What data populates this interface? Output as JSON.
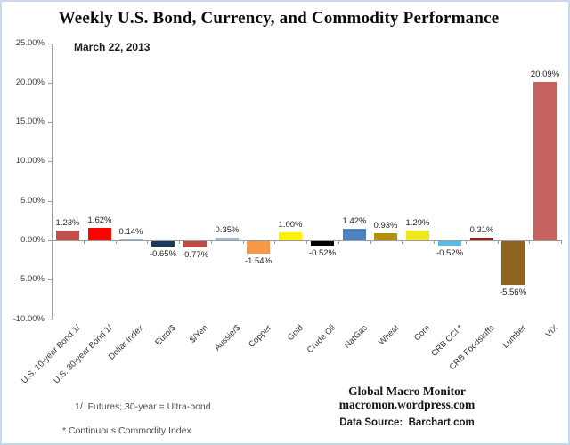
{
  "chart_data": {
    "type": "bar",
    "title": "Weekly U.S. Bond, Currency, and Commodity Performance",
    "date_label": "March 22, 2013",
    "categories": [
      "U.S. 10-year Bond 1/",
      "U.S. 30-year Bond 1/",
      "Dollar Index",
      "Euro/$",
      "$/Yen",
      "Aussie/$",
      "Copper",
      "Gold",
      "Crude Oil",
      "NatGas",
      "Wheat",
      "Corn",
      "CRB CCI *",
      "CRB Foodstuffs",
      "Lumber",
      "VIX"
    ],
    "values": [
      1.23,
      1.62,
      0.14,
      -0.65,
      -0.77,
      0.35,
      -1.54,
      1.0,
      -0.52,
      1.42,
      0.93,
      1.29,
      -0.52,
      0.31,
      -5.56,
      20.09
    ],
    "value_labels": [
      "1.23%",
      "1.62%",
      "0.14%",
      "-0.65%",
      "-0.77%",
      "0.35%",
      "-1.54%",
      "1.00%",
      "-0.52%",
      "1.42%",
      "0.93%",
      "1.29%",
      "-0.52%",
      "0.31%",
      "-5.56%",
      "20.09%"
    ],
    "bar_colors": [
      "#C0504D",
      "#FE0000",
      "#95B3D7",
      "#1B3A5F",
      "#BE4B48",
      "#A3BBD6",
      "#F79646",
      "#FFF200",
      "#000000",
      "#4F81BD",
      "#B38F0E",
      "#EFE71F",
      "#55BEE8",
      "#9A1B1E",
      "#8F6420",
      "#C4635D"
    ],
    "ylim": [
      -10,
      25
    ],
    "yticks": [
      {
        "value": 25,
        "label": "25.00%"
      },
      {
        "value": 20,
        "label": "20.00%"
      },
      {
        "value": 15,
        "label": "15.00%"
      },
      {
        "value": 10,
        "label": "10.00%"
      },
      {
        "value": 5,
        "label": "5.00%"
      },
      {
        "value": 0,
        "label": "0.00%"
      },
      {
        "value": -5,
        "label": "-5.00%"
      },
      {
        "value": -10,
        "label": "-10.00%"
      }
    ],
    "xlabel": "",
    "ylabel": "",
    "grid": false,
    "legend": false
  },
  "footnotes": {
    "line1": "1/  Futures; 30-year = Ultra-bond",
    "line2": "* Continuous Commodity Index"
  },
  "attribution": {
    "line1": "Global Macro Monitor",
    "line2": "macromon.wordpress.com",
    "data_source": "Data Source:  Barchart.com"
  },
  "colors": {
    "frame_border": "#c9d8ea",
    "axis": "#9c9c9c",
    "text": "#1f1f1f"
  }
}
